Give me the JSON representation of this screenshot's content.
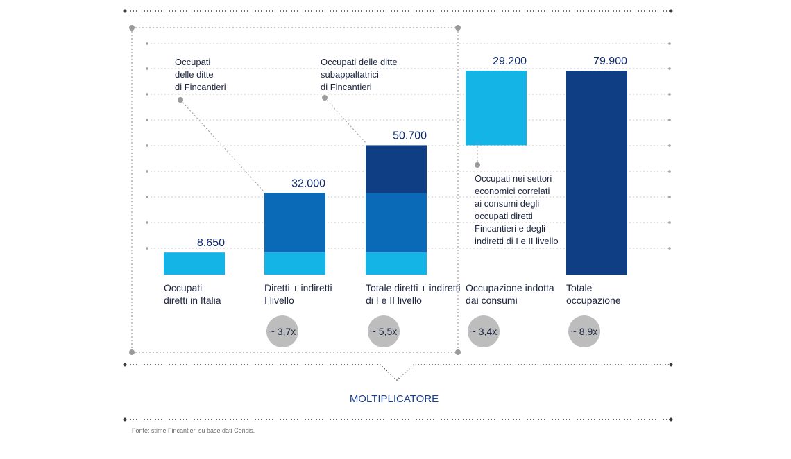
{
  "chart_data": {
    "type": "bar",
    "categories": [
      "Occupati diretti in Italia",
      "Diretti + indiretti I livello",
      "Totale diretti + indiretti di I e II livello",
      "Occupazione indotta dai consumi",
      "Totale occupazione"
    ],
    "category_lines": [
      [
        "Occupati",
        "diretti in Italia"
      ],
      [
        "Diretti + indiretti",
        "I livello"
      ],
      [
        "Totale diretti + indiretti",
        "di I e II livello"
      ],
      [
        "Occupazione indotta",
        "dai consumi"
      ],
      [
        "Totale",
        "occupazione"
      ]
    ],
    "value_labels": [
      "8.650",
      "32.000",
      "50.700",
      "29.200",
      "79.900"
    ],
    "totals": [
      8650,
      32000,
      50700,
      29200,
      79900
    ],
    "segments": [
      [
        {
          "value": 8650,
          "color": "#14b4e6"
        }
      ],
      [
        {
          "value": 8650,
          "color": "#14b4e6"
        },
        {
          "value": 23350,
          "color": "#0a6ab8"
        }
      ],
      [
        {
          "value": 8650,
          "color": "#14b4e6"
        },
        {
          "value": 23350,
          "color": "#0a6ab8"
        },
        {
          "value": 18700,
          "color": "#0f3e84"
        }
      ],
      [
        {
          "value": 29200,
          "color": "#14b4e6",
          "base": 50700
        }
      ],
      [
        {
          "value": 79900,
          "color": "#0f3e84"
        }
      ]
    ],
    "multipliers": [
      "",
      "~ 3,7x",
      "~ 5,5x",
      "~ 3,4x",
      "~ 8,9x"
    ],
    "ylim": [
      0,
      84000
    ],
    "annotations": [
      [
        "Occupati",
        "delle ditte",
        "di Fincantieri"
      ],
      [
        "Occupati delle ditte",
        "subappaltatrici",
        "di Fincantieri"
      ],
      [
        "Occupati nei settori",
        "economici correlati",
        "ai consumi degli",
        "occupati diretti",
        "Fincantieri e degli",
        "indiretti di I e II livello"
      ]
    ]
  },
  "footer_title": "MOLTIPLICATORE",
  "source": "Fonte: stime Fincantieri su base dati Censis.",
  "colors": {
    "light_blue": "#14b4e6",
    "mid_blue": "#0a6ab8",
    "dark_blue": "#0f3e84",
    "value_text": "#0d2a6e",
    "badge": "#bdbdbd",
    "grid": "#c8c8c8"
  }
}
